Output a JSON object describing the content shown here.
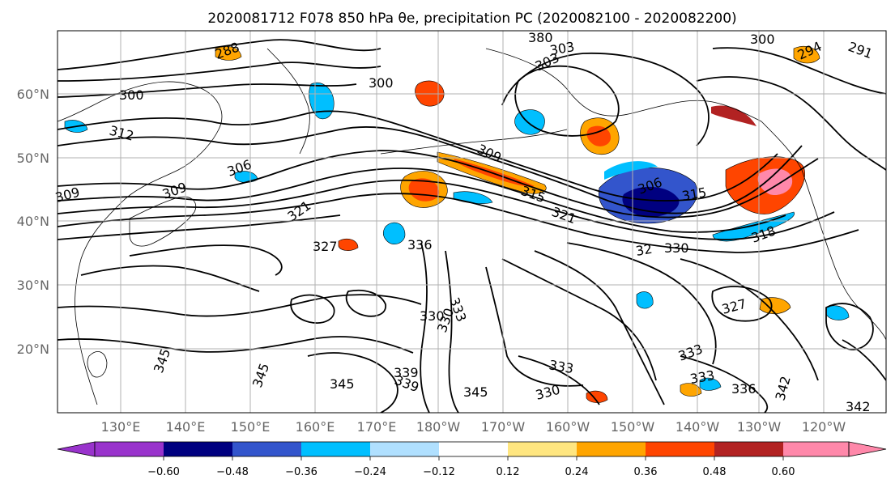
{
  "title": "2020081712 F078 850 hPa θe, precipitation PC (2020082100 - 2020082200)",
  "map": {
    "lon_labels": [
      "130°E",
      "140°E",
      "150°E",
      "160°E",
      "170°E",
      "180°W",
      "170°W",
      "160°W",
      "150°W",
      "140°W",
      "130°W",
      "120°W"
    ],
    "lat_labels": [
      "60°N",
      "50°N",
      "40°N",
      "30°N",
      "20°N"
    ],
    "contour_labels": [
      "288",
      "300",
      "300",
      "312",
      "306",
      "309",
      "309",
      "309",
      "306",
      "315",
      "321",
      "327",
      "336",
      "330",
      "333",
      "330",
      "339",
      "327",
      "330",
      "345",
      "345",
      "345",
      "339",
      "345",
      "333",
      "333",
      "330",
      "333",
      "336",
      "342",
      "342",
      "303",
      "303",
      "380",
      "294",
      "291",
      "300",
      "315",
      "318",
      "321",
      "32"
    ]
  },
  "colorbar": {
    "ticks": [
      "−0.60",
      "−0.48",
      "−0.36",
      "−0.24",
      "−0.12",
      "0.12",
      "0.24",
      "0.36",
      "0.48",
      "0.60"
    ],
    "colors": [
      "#9933cc",
      "#000080",
      "#3355cc",
      "#00bfff",
      "#b0e0ff",
      "#ffffff",
      "#ffe680",
      "#ffa500",
      "#ff4500",
      "#b22222",
      "#ff88aa"
    ]
  }
}
